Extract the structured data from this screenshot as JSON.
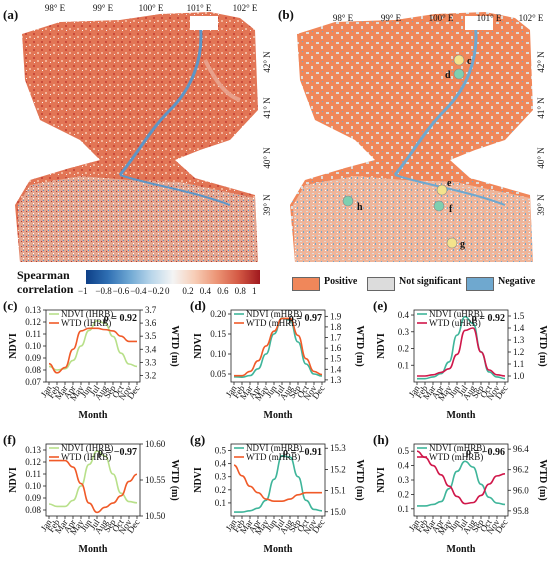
{
  "maps": {
    "a": {
      "letter": "(a)"
    },
    "b": {
      "letter": "(b)"
    },
    "lon_labels": [
      "98° E",
      "99° E",
      "100° E",
      "101° E",
      "102° E"
    ],
    "lat_labels": [
      "42° N",
      "41° N",
      "40° N",
      "39° N"
    ],
    "points": [
      "c",
      "d",
      "e",
      "f",
      "g",
      "h"
    ]
  },
  "legend": {
    "colorbar_title_1": "Spearman",
    "colorbar_title_2": "correlation",
    "colorbar_ticks": [
      "−1",
      "−0.8",
      "−0.6",
      "−0.4",
      "−0.2",
      "0",
      "0.2",
      "0.4",
      "0.6",
      "0.8",
      "1"
    ],
    "categories": [
      {
        "label": "Positive",
        "color": "#f0875a"
      },
      {
        "label": "Not significant",
        "color": "#dcdcdc"
      },
      {
        "label": "Negative",
        "color": "#6fa8cf"
      }
    ]
  },
  "colors": {
    "ndvi_light_green": "#b8e08a",
    "ndvi_teal": "#3fb59a",
    "wtd_orange": "#f05a28",
    "wtd_crimson": "#d0174a"
  },
  "chart_data": [
    {
      "letter": "(c)",
      "type": "line",
      "rho": "ρ = 0.92",
      "x": [
        "Jan",
        "Feb",
        "Mar",
        "Apr",
        "May",
        "Jun",
        "Jul",
        "Aug",
        "Sep",
        "Oct",
        "Nov",
        "Dec"
      ],
      "xlabel": "Month",
      "ylabel_left": "NDVI",
      "ylabel_right": "WTD (m)",
      "ylim_left": [
        0.07,
        0.13
      ],
      "yticks_left": [
        "0.07",
        "0.08",
        "0.09",
        "0.10",
        "0.11",
        "0.12",
        "0.13"
      ],
      "ylim_right": [
        3.15,
        3.7
      ],
      "yticks_right": [
        "3.2",
        "3.3",
        "3.4",
        "3.5",
        "3.6",
        "3.7"
      ],
      "series": [
        {
          "name": "NDVI (IHRB)",
          "axis": "left",
          "color": "#b8e08a",
          "values": [
            0.083,
            0.08,
            0.081,
            0.088,
            0.1,
            0.113,
            0.121,
            0.119,
            0.108,
            0.094,
            0.085,
            0.083
          ]
        },
        {
          "name": "WTD (IHRB)",
          "axis": "right",
          "color": "#f05a28",
          "values": [
            3.29,
            3.22,
            3.26,
            3.4,
            3.54,
            3.56,
            3.56,
            3.55,
            3.54,
            3.5,
            3.46,
            3.46
          ]
        }
      ]
    },
    {
      "letter": "(d)",
      "type": "line",
      "rho": "ρ = 0.97",
      "x": [
        "Jan",
        "Feb",
        "Mar",
        "Apr",
        "May",
        "Jun",
        "Jul",
        "Aug",
        "Sep",
        "Oct",
        "Nov",
        "Dec"
      ],
      "xlabel": "Month",
      "ylabel_left": "NDVI",
      "ylabel_right": "WTD (m)",
      "ylim_left": [
        0.03,
        0.21
      ],
      "yticks_left": [
        "0.05",
        "0.10",
        "0.15",
        "0.20"
      ],
      "ylim_right": [
        1.28,
        1.96
      ],
      "yticks_right": [
        "1.3",
        "1.4",
        "1.5",
        "1.6",
        "1.7",
        "1.8",
        "1.9"
      ],
      "series": [
        {
          "name": "NDVI (mHRB)",
          "axis": "left",
          "color": "#3fb59a",
          "values": [
            0.043,
            0.042,
            0.046,
            0.063,
            0.1,
            0.15,
            0.19,
            0.185,
            0.13,
            0.075,
            0.05,
            0.045
          ]
        },
        {
          "name": "WTD (mHRB)",
          "axis": "right",
          "color": "#f05a28",
          "values": [
            1.34,
            1.34,
            1.38,
            1.48,
            1.62,
            1.76,
            1.88,
            1.88,
            1.72,
            1.5,
            1.38,
            1.35
          ]
        }
      ]
    },
    {
      "letter": "(e)",
      "type": "line",
      "rho": "ρ = 0.92",
      "x": [
        "Jan",
        "Feb",
        "Mar",
        "Apr",
        "May",
        "Jun",
        "Jul",
        "Aug",
        "Sep",
        "Oct",
        "Nov",
        "Dec"
      ],
      "xlabel": "Month",
      "ylabel_left": "NDVI",
      "ylabel_right": "WTD (m)",
      "ylim_left": [
        0.0,
        0.43
      ],
      "yticks_left": [
        "0.1",
        "0.2",
        "0.3",
        "0.4"
      ],
      "ylim_right": [
        0.95,
        1.55
      ],
      "yticks_right": [
        "1.0",
        "1.1",
        "1.2",
        "1.3",
        "1.4",
        "1.5"
      ],
      "series": [
        {
          "name": "NDVI (uHRB)",
          "axis": "left",
          "color": "#3fb59a",
          "values": [
            0.02,
            0.02,
            0.03,
            0.05,
            0.12,
            0.28,
            0.39,
            0.35,
            0.18,
            0.06,
            0.03,
            0.02
          ]
        },
        {
          "name": "WTD (uHRB)",
          "axis": "right",
          "color": "#d0174a",
          "values": [
            1.0,
            1.0,
            1.01,
            1.03,
            1.06,
            1.18,
            1.38,
            1.4,
            1.2,
            1.05,
            1.01,
            1.0
          ]
        }
      ]
    },
    {
      "letter": "(f)",
      "type": "line",
      "rho": "ρ = −0.97",
      "x": [
        "Jan",
        "Feb",
        "Mar",
        "Apr",
        "May",
        "Jun",
        "Jul",
        "Aug",
        "Sep",
        "Oct",
        "Nov",
        "Dec"
      ],
      "xlabel": "Month",
      "ylabel_left": "NDVI",
      "ylabel_right": "WTD (m)",
      "ylim_left": [
        0.075,
        0.135
      ],
      "yticks_left": [
        "0.08",
        "0.09",
        "0.10",
        "0.11",
        "0.12",
        "0.13"
      ],
      "ylim_right": [
        10.5,
        10.6
      ],
      "yticks_right": [
        "10.50",
        "10.55",
        "10.60"
      ],
      "series": [
        {
          "name": "NDVI (IHRB)",
          "axis": "left",
          "color": "#b8e08a",
          "values": [
            0.085,
            0.083,
            0.083,
            0.088,
            0.1,
            0.118,
            0.129,
            0.125,
            0.11,
            0.094,
            0.087,
            0.086
          ]
        },
        {
          "name": "WTD (IHRB)",
          "axis": "right",
          "color": "#f05a28",
          "values": [
            10.577,
            10.577,
            10.577,
            10.568,
            10.545,
            10.518,
            10.505,
            10.512,
            10.518,
            10.528,
            10.548,
            10.558
          ]
        }
      ]
    },
    {
      "letter": "(g)",
      "type": "line",
      "rho": "ρ = −0.91",
      "x": [
        "Jan",
        "Feb",
        "Mar",
        "Apr",
        "May",
        "Jun",
        "Jul",
        "Aug",
        "Sep",
        "Oct",
        "Nov",
        "Dec"
      ],
      "xlabel": "Month",
      "ylabel_left": "NDVI",
      "ylabel_right": "WTD (m)",
      "ylim_left": [
        0.0,
        0.55
      ],
      "yticks_left": [
        "0.1",
        "0.2",
        "0.3",
        "0.4",
        "0.5"
      ],
      "ylim_right": [
        14.98,
        15.32
      ],
      "yticks_right": [
        "15.0",
        "15.1",
        "15.2",
        "15.3"
      ],
      "series": [
        {
          "name": "NDVI (mHRB)",
          "axis": "left",
          "color": "#3fb59a",
          "values": [
            0.03,
            0.03,
            0.04,
            0.06,
            0.12,
            0.28,
            0.46,
            0.45,
            0.3,
            0.12,
            0.05,
            0.04
          ]
        },
        {
          "name": "WTD (mHRB)",
          "axis": "right",
          "color": "#f05a28",
          "values": [
            15.22,
            15.17,
            15.12,
            15.09,
            15.06,
            15.05,
            15.05,
            15.06,
            15.08,
            15.09,
            15.09,
            15.09
          ]
        }
      ]
    },
    {
      "letter": "(h)",
      "type": "line",
      "rho": "ρ = −0.96",
      "x": [
        "Jan",
        "Feb",
        "Mar",
        "Apr",
        "May",
        "Jun",
        "Jul",
        "Aug",
        "Sep",
        "Oct",
        "Nov",
        "Dec"
      ],
      "xlabel": "Month",
      "ylabel_left": "NDVI",
      "ylabel_right": "WTD (m)",
      "ylim_left": [
        0.05,
        0.55
      ],
      "yticks_left": [
        "0.1",
        "0.2",
        "0.3",
        "0.4",
        "0.5"
      ],
      "ylim_right": [
        95.75,
        96.45
      ],
      "yticks_right": [
        "95.8",
        "96.0",
        "96.2",
        "96.4"
      ],
      "series": [
        {
          "name": "NDVI (mHRB)",
          "axis": "left",
          "color": "#3fb59a",
          "values": [
            0.12,
            0.12,
            0.13,
            0.15,
            0.24,
            0.36,
            0.43,
            0.39,
            0.27,
            0.18,
            0.14,
            0.13
          ]
        },
        {
          "name": "WTD (mHRB)",
          "axis": "right",
          "color": "#d0174a",
          "values": [
            96.38,
            96.32,
            96.24,
            96.15,
            96.04,
            95.94,
            95.87,
            95.88,
            95.95,
            96.06,
            96.14,
            96.16
          ]
        }
      ]
    }
  ]
}
